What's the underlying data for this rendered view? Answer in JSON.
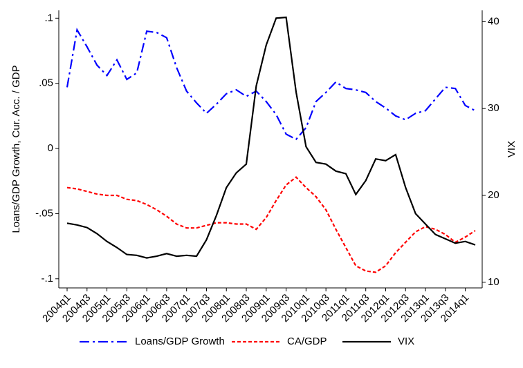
{
  "chart_data": {
    "type": "line",
    "categories": [
      "2004q1",
      null,
      "2004q3",
      null,
      "2005q1",
      null,
      "2005q3",
      null,
      "2006q1",
      null,
      "2006q3",
      null,
      "2007q1",
      null,
      "2007q3",
      null,
      "2008q1",
      null,
      "2008q3",
      null,
      "2009q1",
      null,
      "2009q3",
      null,
      "2010q1",
      null,
      "2010q3",
      null,
      "2011q1",
      null,
      "2011q3",
      null,
      "2012q1",
      null,
      "2012q3",
      null,
      "2013q1",
      null,
      "2013q3",
      null,
      "2014q1",
      null
    ],
    "ylabel": "Loans/GDP Growth, Cur. Acc. / GDP",
    "y2label": "VIX",
    "ylim": [
      -0.107,
      0.106
    ],
    "yticks": [
      {
        "value": 0.1,
        "label": ".1"
      },
      {
        "value": 0.05,
        "label": ".05"
      },
      0,
      {
        "value": -0.05,
        "label": "-.05"
      },
      {
        "value": -0.1,
        "label": "-.1"
      }
    ],
    "y2lim": [
      9.35,
      41.3
    ],
    "y2ticks": [
      10,
      20,
      30,
      40
    ],
    "legend": "bottom",
    "series": [
      {
        "name": "Loans/GDP Growth",
        "color": "#0000ff",
        "style": "dash-dot",
        "values": [
          0.047,
          0.091,
          0.078,
          0.064,
          0.056,
          0.068,
          0.053,
          0.058,
          0.09,
          0.089,
          0.085,
          0.062,
          0.044,
          0.035,
          0.027,
          0.034,
          0.042,
          0.045,
          0.04,
          0.044,
          0.036,
          0.026,
          0.011,
          0.007,
          0.016,
          0.036,
          0.043,
          0.051,
          0.046,
          0.045,
          0.043,
          0.036,
          0.031,
          0.025,
          0.022,
          0.027,
          0.029,
          0.038,
          0.047,
          0.046,
          0.033,
          0.029
        ]
      },
      {
        "name": "CA/GDP",
        "color": "#ff0000",
        "style": "dash",
        "values": [
          -0.03,
          -0.031,
          -0.033,
          -0.035,
          -0.036,
          -0.036,
          -0.039,
          -0.04,
          -0.043,
          -0.047,
          -0.052,
          -0.058,
          -0.061,
          -0.061,
          -0.059,
          -0.057,
          -0.057,
          -0.058,
          -0.058,
          -0.062,
          -0.053,
          -0.04,
          -0.028,
          -0.022,
          -0.03,
          -0.037,
          -0.047,
          -0.062,
          -0.076,
          -0.09,
          -0.094,
          -0.095,
          -0.09,
          -0.08,
          -0.072,
          -0.064,
          -0.06,
          -0.062,
          -0.066,
          -0.072,
          -0.068,
          -0.063
        ]
      },
      {
        "name": "VIX",
        "color": "#000000",
        "style": "solid",
        "axis": "y2",
        "values": [
          16.8,
          16.6,
          16.3,
          15.6,
          14.7,
          14.0,
          13.2,
          13.1,
          12.8,
          13.0,
          13.3,
          13.0,
          13.1,
          13.0,
          14.9,
          17.7,
          20.9,
          22.6,
          23.6,
          32.6,
          37.3,
          40.4,
          40.5,
          31.9,
          25.6,
          23.8,
          23.6,
          22.8,
          22.5,
          20.1,
          21.7,
          24.2,
          24.0,
          24.7,
          20.9,
          17.9,
          16.7,
          15.5,
          15.0,
          14.5,
          14.7,
          14.3
        ]
      }
    ]
  }
}
